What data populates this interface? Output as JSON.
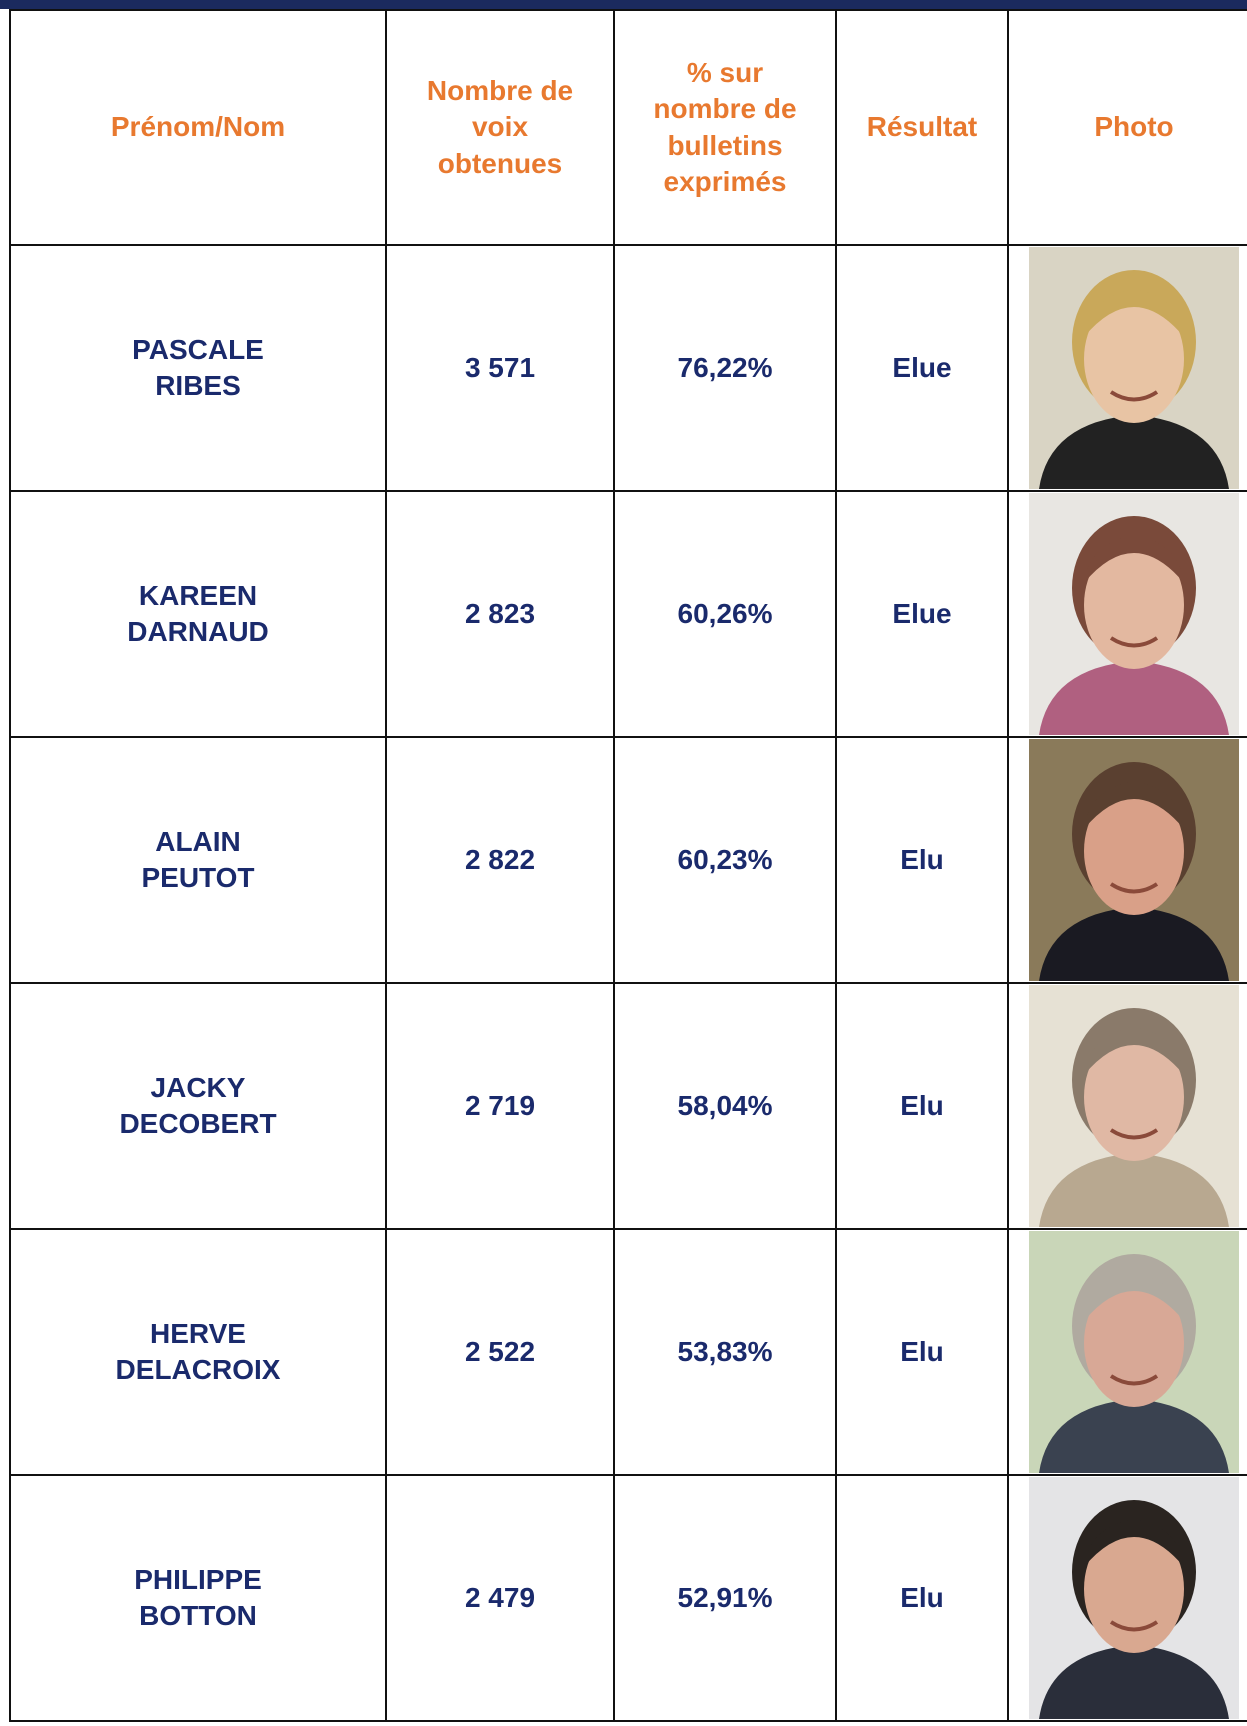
{
  "table": {
    "header": [
      "Prénom/Nom",
      "Nombre de\nvoix\nobtenues",
      "% sur\nnombre de\nbulletins\nexprimés",
      "Résultat",
      "Photo"
    ],
    "rows": [
      [
        "PASCALE\nRIBES",
        "3 571",
        "76,22%",
        "Elue"
      ],
      [
        "KAREEN\nDARNAUD",
        "2 823",
        "60,26%",
        "Elue"
      ],
      [
        "ALAIN\nPEUTOT",
        "2 822",
        "60,23%",
        "Elu"
      ],
      [
        "JACKY\nDECOBERT",
        "2 719",
        "58,04%",
        "Elu"
      ],
      [
        "HERVE\nDELACROIX",
        "2 522",
        "53,83%",
        "Elu"
      ],
      [
        "PHILIPPE\nBOTTON",
        "2 479",
        "52,91%",
        "Elu"
      ]
    ]
  }
}
